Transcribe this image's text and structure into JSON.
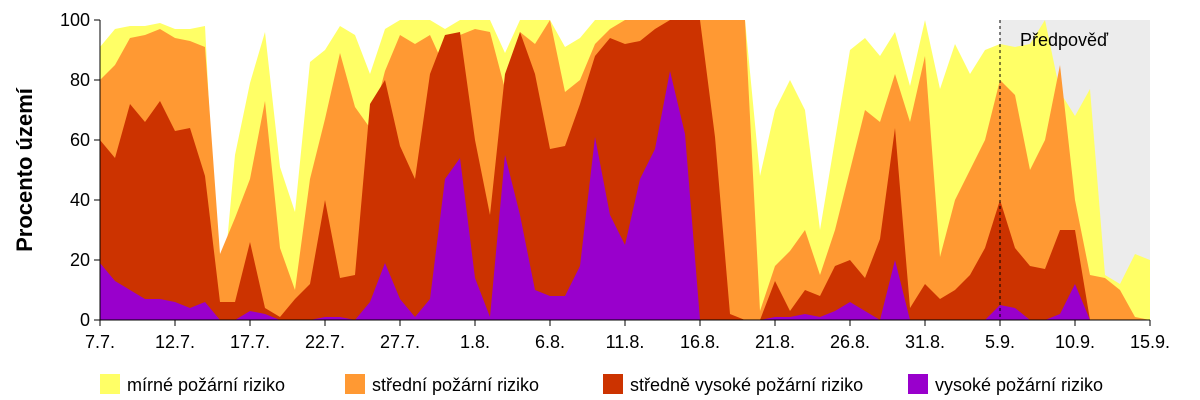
{
  "chart_data": {
    "type": "area",
    "stacked": false,
    "ylabel": "Procento území",
    "ylim": [
      0,
      100
    ],
    "yticks": [
      0,
      20,
      40,
      60,
      80,
      100
    ],
    "x_start_day": 0,
    "x_end_day": 70,
    "xtick_labels": [
      "7.7.",
      "12.7.",
      "17.7.",
      "22.7.",
      "27.7.",
      "1.8.",
      "6.8.",
      "11.8.",
      "16.8.",
      "21.8.",
      "26.8.",
      "31.8.",
      "5.9.",
      "10.9.",
      "15.9."
    ],
    "forecast_start_day": 60,
    "forecast_label": "Předpověď",
    "forecast_color": "#ececec",
    "legend_position": "bottom",
    "series": [
      {
        "name": "mírné požární riziko",
        "color": "#ffff66",
        "values": [
          91,
          97,
          98,
          98,
          99,
          97,
          97,
          98,
          0,
          55,
          79,
          96,
          51,
          36,
          86,
          90,
          98,
          95,
          82,
          97,
          100,
          100,
          100,
          97,
          100,
          100,
          100,
          89,
          100,
          100,
          100,
          91,
          94,
          100,
          100,
          100,
          100,
          100,
          100,
          100,
          100,
          100,
          100,
          100,
          48,
          70,
          80,
          70,
          30,
          60,
          90,
          94,
          88,
          96,
          78,
          100,
          77,
          92,
          82,
          90,
          92,
          91,
          92,
          100,
          76,
          68,
          77,
          15,
          12,
          22,
          20
        ]
      },
      {
        "name": "střední požární riziko",
        "color": "#ff9933",
        "values": [
          80,
          85,
          94,
          95,
          97,
          94,
          93,
          91,
          22,
          34,
          47,
          73,
          24,
          10,
          47,
          67,
          89,
          71,
          64,
          83,
          95,
          92,
          95,
          84,
          95,
          97,
          96,
          77,
          96,
          92,
          100,
          76,
          80,
          92,
          97,
          100,
          100,
          100,
          100,
          100,
          100,
          100,
          100,
          100,
          3,
          18,
          23,
          30,
          15,
          30,
          50,
          70,
          66,
          82,
          66,
          88,
          21,
          40,
          50,
          60,
          80,
          75,
          50,
          60,
          85,
          40,
          15,
          14,
          10,
          1,
          0
        ]
      },
      {
        "name": "středně vysoké požární riziko",
        "color": "#cc3300",
        "values": [
          60,
          54,
          72,
          66,
          73,
          63,
          64,
          48,
          6,
          6,
          26,
          4,
          1,
          7,
          12,
          40,
          14,
          15,
          72,
          80,
          58,
          47,
          82,
          95,
          96,
          60,
          35,
          82,
          96,
          82,
          57,
          58,
          72,
          88,
          94,
          92,
          93,
          97,
          100,
          100,
          100,
          61,
          2,
          0,
          0,
          13,
          3,
          10,
          8,
          18,
          20,
          14,
          27,
          64,
          4,
          12,
          7,
          10,
          15,
          24,
          40,
          24,
          18,
          17,
          30,
          30,
          0,
          0,
          0,
          0,
          0
        ]
      },
      {
        "name": "vysoké požární riziko",
        "color": "#9900cc",
        "values": [
          19,
          13,
          10,
          7,
          7,
          6,
          4,
          6,
          0,
          0,
          3,
          2,
          0,
          0,
          0,
          1,
          1,
          0,
          6,
          19,
          7,
          1,
          7,
          47,
          54,
          14,
          1,
          55,
          35,
          10,
          8,
          8,
          18,
          61,
          35,
          25,
          47,
          57,
          83,
          62,
          0,
          0,
          0,
          0,
          0,
          1,
          1,
          2,
          1,
          3,
          6,
          3,
          0,
          20,
          0,
          0,
          0,
          0,
          0,
          0,
          5,
          4,
          0,
          0,
          2,
          12,
          0,
          0,
          0,
          0,
          0
        ]
      }
    ]
  }
}
